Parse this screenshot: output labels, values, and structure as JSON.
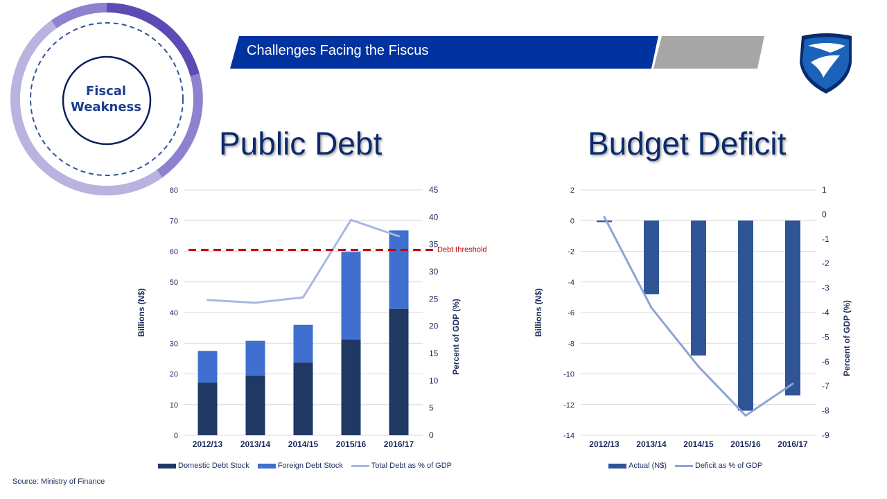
{
  "header": {
    "title": "Challenges Facing the Fiscus",
    "badge_text": "Fiscal Weakness",
    "badge_lines": [
      "Fiscal",
      "Weakness"
    ],
    "logo_icon": "standard-bank-shield-logo-icon"
  },
  "colors": {
    "banner_blue": "#0033a0",
    "banner_grey": "#a6a6a6",
    "domestic": "#1f3864",
    "foreign": "#3f6fcf",
    "pct_line": "#a9b7e0",
    "threshold": "#c00000",
    "deficit_bar": "#2f5597",
    "deficit_line": "#8ea3d6",
    "title": "#0b2a6b"
  },
  "source": "Source: Ministry of Finance",
  "chart_data": [
    {
      "type": "bar",
      "stacked": true,
      "title": "Public Debt",
      "categories": [
        "2012/13",
        "2013/14",
        "2014/15",
        "2015/16",
        "2016/17"
      ],
      "ylabel": "Billions (N$)",
      "y2label": "Percent of GDP (%)",
      "ylim": [
        0,
        80
      ],
      "y2lim": [
        0,
        45
      ],
      "yticks": [
        "0",
        "10",
        "20",
        "30",
        "40",
        "50",
        "60",
        "70",
        "80"
      ],
      "y2ticks": [
        "0",
        "5",
        "10",
        "15",
        "20",
        "25",
        "30",
        "35",
        "40",
        "45"
      ],
      "series": [
        {
          "name": "Domestic Debt Stock",
          "values": [
            17.2,
            19.5,
            23.7,
            31.2,
            41.2
          ]
        },
        {
          "name": "Foreign Debt Stock",
          "values": [
            10.3,
            11.3,
            12.3,
            28.6,
            25.6
          ]
        },
        {
          "name": "Total Debt as % of GDP",
          "axis": "right",
          "type": "line",
          "values": [
            24.8,
            24.3,
            25.3,
            39.5,
            36.5
          ]
        }
      ],
      "threshold": {
        "value": 34.0,
        "axis": "right",
        "label": "Debt threshold"
      },
      "grid": true,
      "legend": "bottom"
    },
    {
      "type": "bar",
      "title": "Budget Deficit",
      "categories": [
        "2012/13",
        "2013/14",
        "2014/15",
        "2015/16",
        "2016/17"
      ],
      "ylabel": "Billions (N$)",
      "y2label": "Percent of GDP (%)",
      "ylim": [
        -14,
        2
      ],
      "y2lim": [
        -9,
        1
      ],
      "yticks": [
        "2",
        "0",
        "-2",
        "-4",
        "-6",
        "-8",
        "-10",
        "-12",
        "-14"
      ],
      "y2ticks": [
        "1",
        "0",
        "-1",
        "-2",
        "-3",
        "-4",
        "-5",
        "-6",
        "-7",
        "-8",
        "-9"
      ],
      "series": [
        {
          "name": "Actual (N$)",
          "values": [
            -0.1,
            -4.8,
            -8.8,
            -12.4,
            -11.4
          ]
        },
        {
          "name": "Deficit as % of GDP",
          "axis": "right",
          "type": "line",
          "values": [
            -0.1,
            -3.8,
            -6.2,
            -8.2,
            -6.9
          ]
        }
      ],
      "grid": true,
      "legend": "bottom"
    }
  ]
}
